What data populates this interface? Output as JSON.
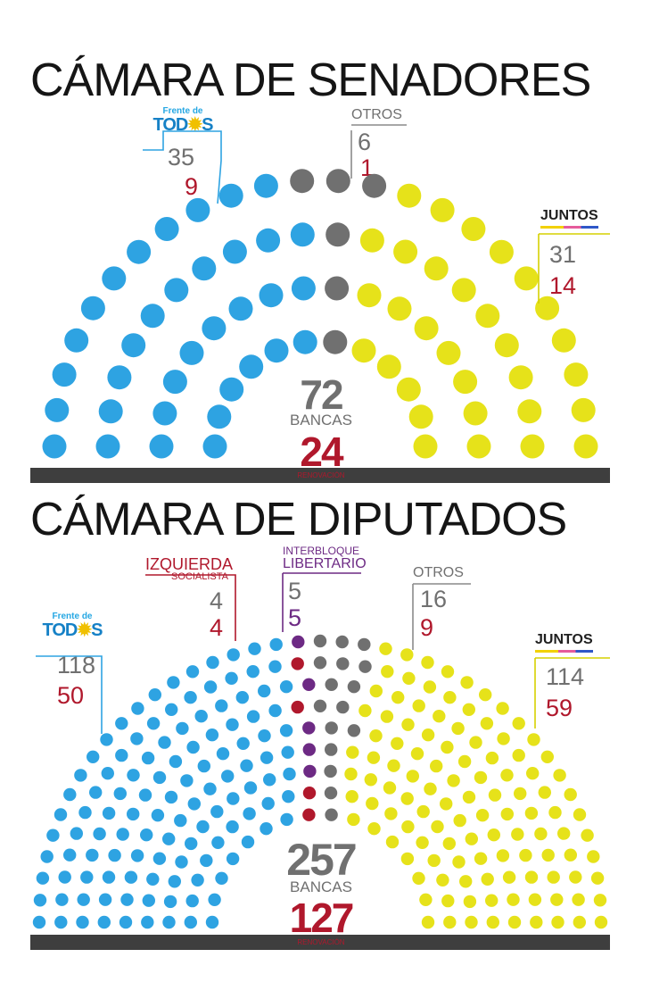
{
  "senado": {
    "title": "CÁMARA DE SENADORES",
    "total": "72",
    "total_label": "BANCAS",
    "quorum": "24",
    "quorum_label": "RENOVACIÓN",
    "parties": {
      "fdt": {
        "logo_top": "Frente de",
        "logo_main": "TODOS",
        "seats": "35",
        "renew": "9"
      },
      "otros": {
        "name": "OTROS",
        "seats": "6",
        "renew": "1"
      },
      "juntos": {
        "logo": "JUNTOS",
        "seats": "31",
        "renew": "14"
      }
    }
  },
  "diputados": {
    "title": "CÁMARA DE DIPUTADOS",
    "total": "257",
    "total_label": "BANCAS",
    "quorum": "127",
    "quorum_label": "RENOVACIÓN",
    "parties": {
      "fdt": {
        "logo_top": "Frente de",
        "logo_main": "TODOS",
        "seats": "118",
        "renew": "50"
      },
      "izquierda": {
        "name": "IZQUIERDA",
        "sub": "SOCIALISTA",
        "seats": "4",
        "renew": "4"
      },
      "libertario": {
        "name_1": "INTERBLOQUE",
        "name_2": "LIBERTARIO",
        "seats": "5",
        "renew": "5"
      },
      "otros": {
        "name": "OTROS",
        "seats": "16",
        "renew": "9"
      },
      "juntos": {
        "logo": "JUNTOS",
        "seats": "114",
        "renew": "59"
      }
    }
  },
  "colors": {
    "fdt": "#2ea3e2",
    "otros": "#707070",
    "juntos": "#e6e21a",
    "izquierda": "#b0182c",
    "libertario": "#6d2a84",
    "base": "#3e3e3e"
  },
  "chart_data": [
    {
      "type": "parliament",
      "title": "CÁMARA DE SENADORES",
      "total_seats": 72,
      "series": [
        {
          "name": "Frente de TODOS",
          "seats": 35,
          "renew": 9,
          "color": "#2ea3e2"
        },
        {
          "name": "OTROS",
          "seats": 6,
          "renew": 1,
          "color": "#707070"
        },
        {
          "name": "JUNTOS",
          "seats": 31,
          "renew": 14,
          "color": "#e6e21a"
        }
      ],
      "renovacion": 24
    },
    {
      "type": "parliament",
      "title": "CÁMARA DE DIPUTADOS",
      "total_seats": 257,
      "series": [
        {
          "name": "Frente de TODOS",
          "seats": 118,
          "renew": 50,
          "color": "#2ea3e2"
        },
        {
          "name": "IZQUIERDA SOCIALISTA",
          "seats": 4,
          "renew": 4,
          "color": "#b0182c"
        },
        {
          "name": "INTERBLOQUE LIBERTARIO",
          "seats": 5,
          "renew": 5,
          "color": "#6d2a84"
        },
        {
          "name": "OTROS",
          "seats": 16,
          "renew": 9,
          "color": "#707070"
        },
        {
          "name": "JUNTOS",
          "seats": 114,
          "renew": 59,
          "color": "#e6e21a"
        }
      ],
      "renovacion": 127
    }
  ]
}
